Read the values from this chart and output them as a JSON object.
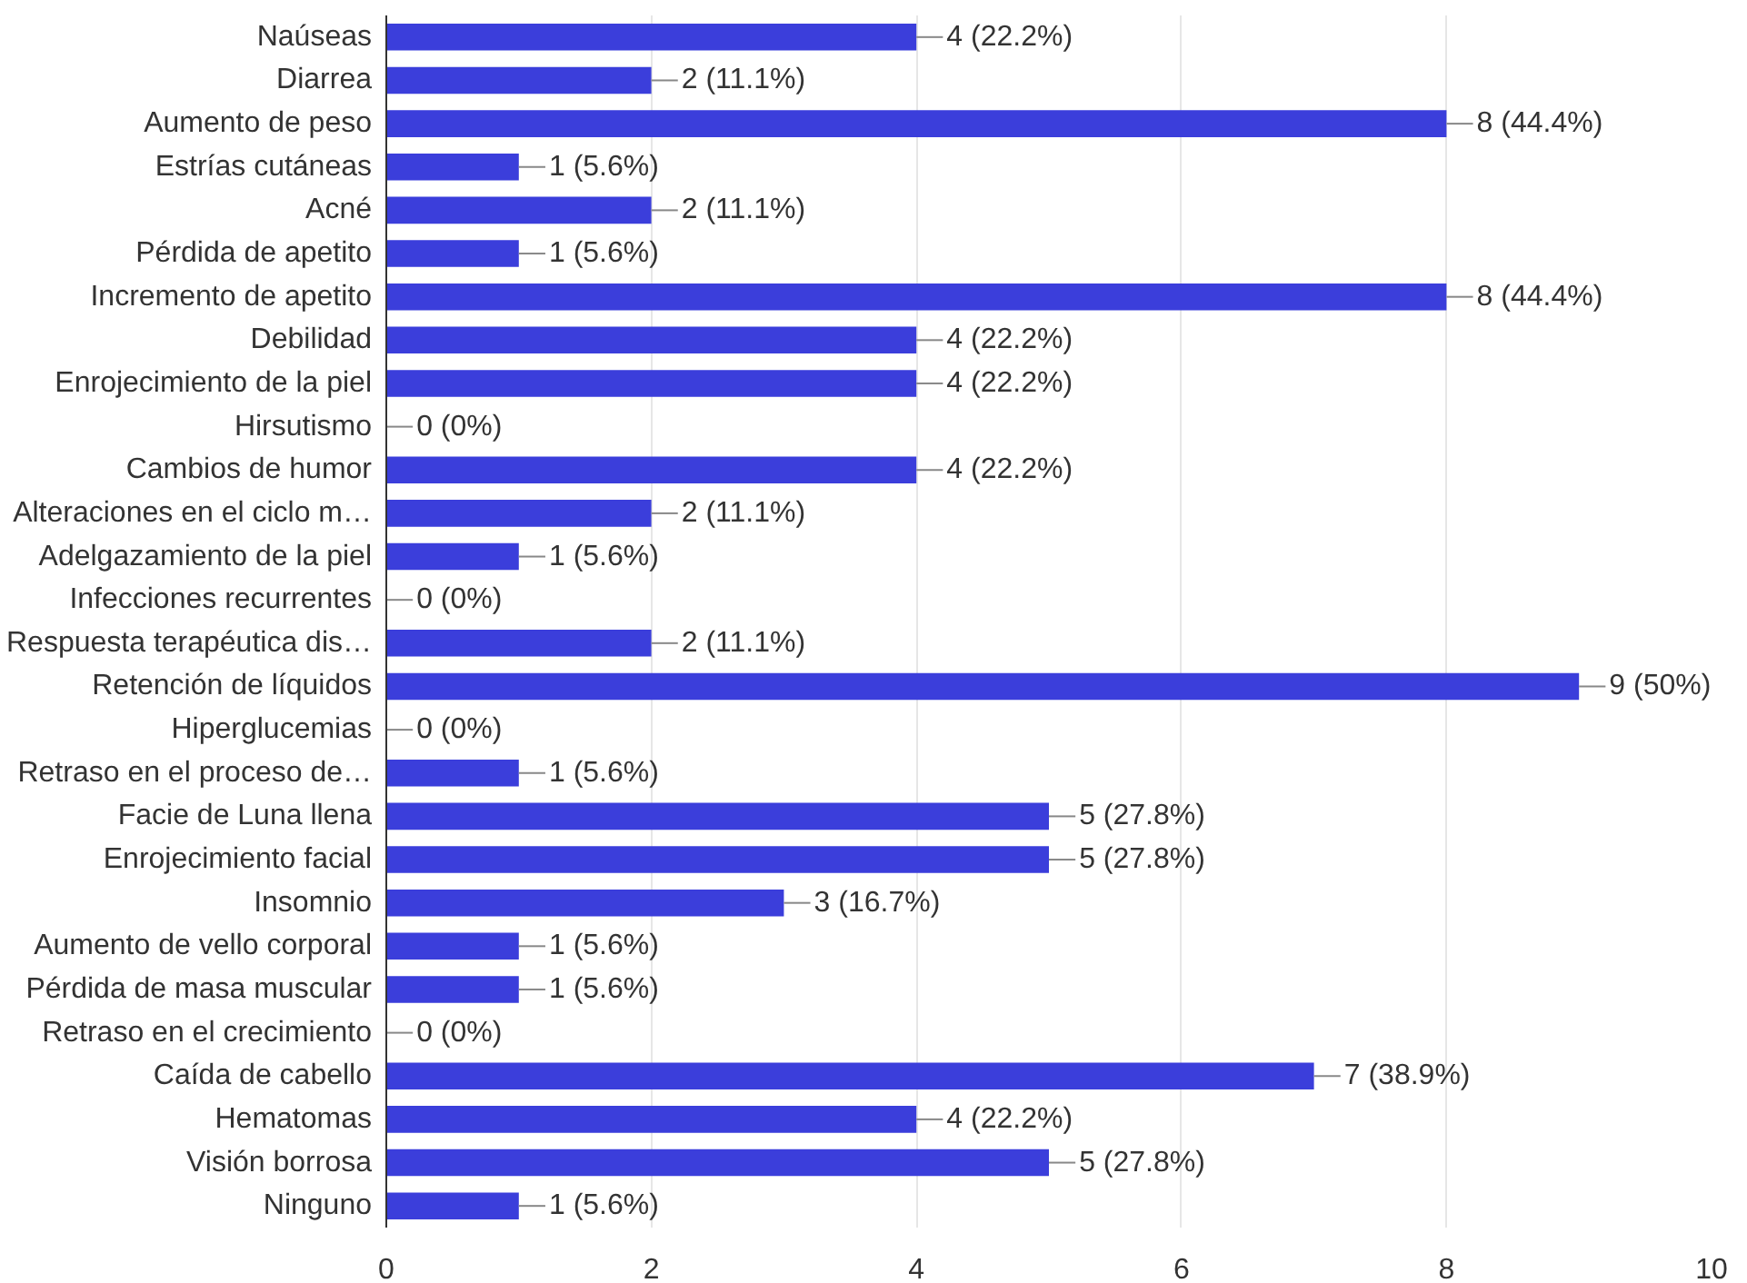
{
  "chart_data": {
    "type": "bar",
    "orientation": "horizontal",
    "categories": [
      "Naúseas",
      "Diarrea",
      "Aumento de peso",
      "Estrías cutáneas",
      "Acné",
      "Pérdida de apetito",
      "Incremento de apetito",
      "Debilidad",
      "Enrojecimiento de la piel",
      "Hirsutismo",
      "Cambios de humor",
      "Alteraciones en el ciclo m…",
      "Adelgazamiento de la piel",
      "Infecciones recurrentes",
      "Respuesta terapéutica dis…",
      "Retención de líquidos",
      "Hiperglucemias",
      "Retraso en el proceso de…",
      "Facie de Luna llena",
      "Enrojecimiento facial",
      "Insomnio",
      "Aumento de vello corporal",
      "Pérdida de masa muscular",
      "Retraso en el crecimiento",
      "Caída de cabello",
      "Hematomas",
      "Visión borrosa",
      "Ninguno"
    ],
    "values": [
      4,
      2,
      8,
      1,
      2,
      1,
      8,
      4,
      4,
      0,
      4,
      2,
      1,
      0,
      2,
      9,
      0,
      1,
      5,
      5,
      3,
      1,
      1,
      0,
      7,
      4,
      5,
      1
    ],
    "value_labels": [
      "4 (22.2%)",
      "2 (11.1%)",
      "8 (44.4%)",
      "1 (5.6%)",
      "2 (11.1%)",
      "1 (5.6%)",
      "8 (44.4%)",
      "4 (22.2%)",
      "4 (22.2%)",
      "0 (0%)",
      "4 (22.2%)",
      "2 (11.1%)",
      "1 (5.6%)",
      "0 (0%)",
      "2 (11.1%)",
      "9 (50%)",
      "0 (0%)",
      "1 (5.6%)",
      "5 (27.8%)",
      "5 (27.8%)",
      "3 (16.7%)",
      "1 (5.6%)",
      "1 (5.6%)",
      "0 (0%)",
      "7 (38.9%)",
      "4 (22.2%)",
      "5 (27.8%)",
      "1 (5.6%)"
    ],
    "color": "#3b3edb",
    "xlim": [
      0,
      10
    ],
    "xticks": [
      0,
      2,
      4,
      6,
      8,
      10
    ],
    "grid": "x"
  }
}
